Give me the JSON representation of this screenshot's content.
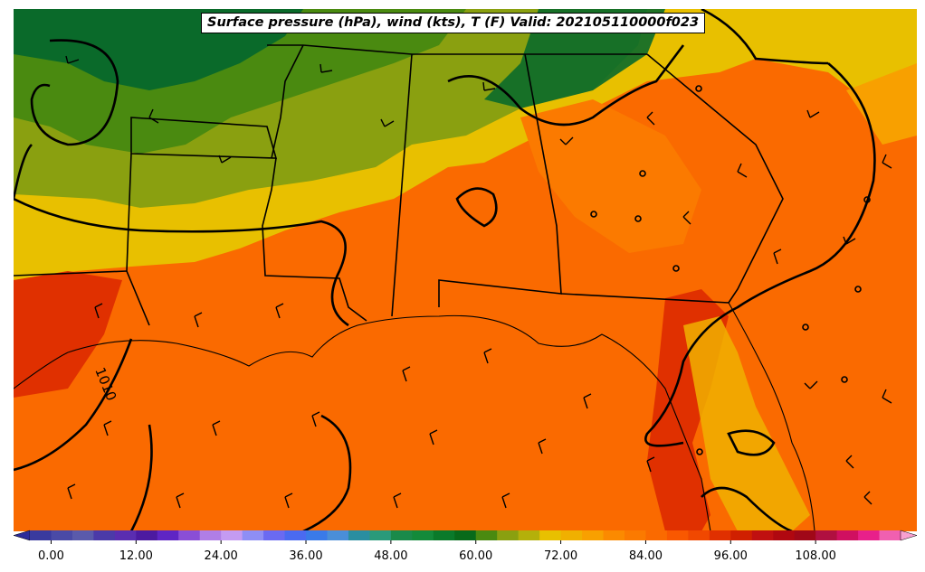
{
  "title": "Surface pressure (hPa), wind (kts), T (F) Valid: 202105110000f023",
  "pressure_contour_label": "1010",
  "colorbar": {
    "ticks": [
      "0.00",
      "12.00",
      "24.00",
      "36.00",
      "48.00",
      "60.00",
      "72.00",
      "84.00",
      "96.00",
      "108.00"
    ],
    "min": -3,
    "max": 120,
    "step": 3,
    "colors": [
      "#2b2b9a",
      "#3a3a9e",
      "#4a4aa6",
      "#5a5aab",
      "#4b3aa8",
      "#5a2db0",
      "#4c1aa0",
      "#5f25c4",
      "#8a4ed6",
      "#b07ee6",
      "#c49bf2",
      "#8e8ef5",
      "#6a6af2",
      "#4a6af0",
      "#3a7ae8",
      "#4a8ed8",
      "#2a8ea0",
      "#2a9a7a",
      "#1a8a4a",
      "#138a3a",
      "#0a7a2a",
      "#086a1a",
      "#4a8a10",
      "#8aa010",
      "#b4b00a",
      "#e8c000",
      "#f0b000",
      "#f8a000",
      "#fb8a00",
      "#fb7a00",
      "#fa6a00",
      "#f95800",
      "#f04800",
      "#e03000",
      "#d02000",
      "#c01010",
      "#b00810",
      "#a00818",
      "#b01040",
      "#d01060",
      "#e8208a",
      "#f060b0",
      "#f8a0d0"
    ]
  },
  "field_colors": {
    "deep_green": "#0a6a2a",
    "green": "#4a8a10",
    "olive": "#8aa010",
    "yellow": "#e8c000",
    "amber": "#f0b000",
    "orange": "#fa6a00",
    "dark_orange": "#f04800",
    "red": "#d02000"
  }
}
